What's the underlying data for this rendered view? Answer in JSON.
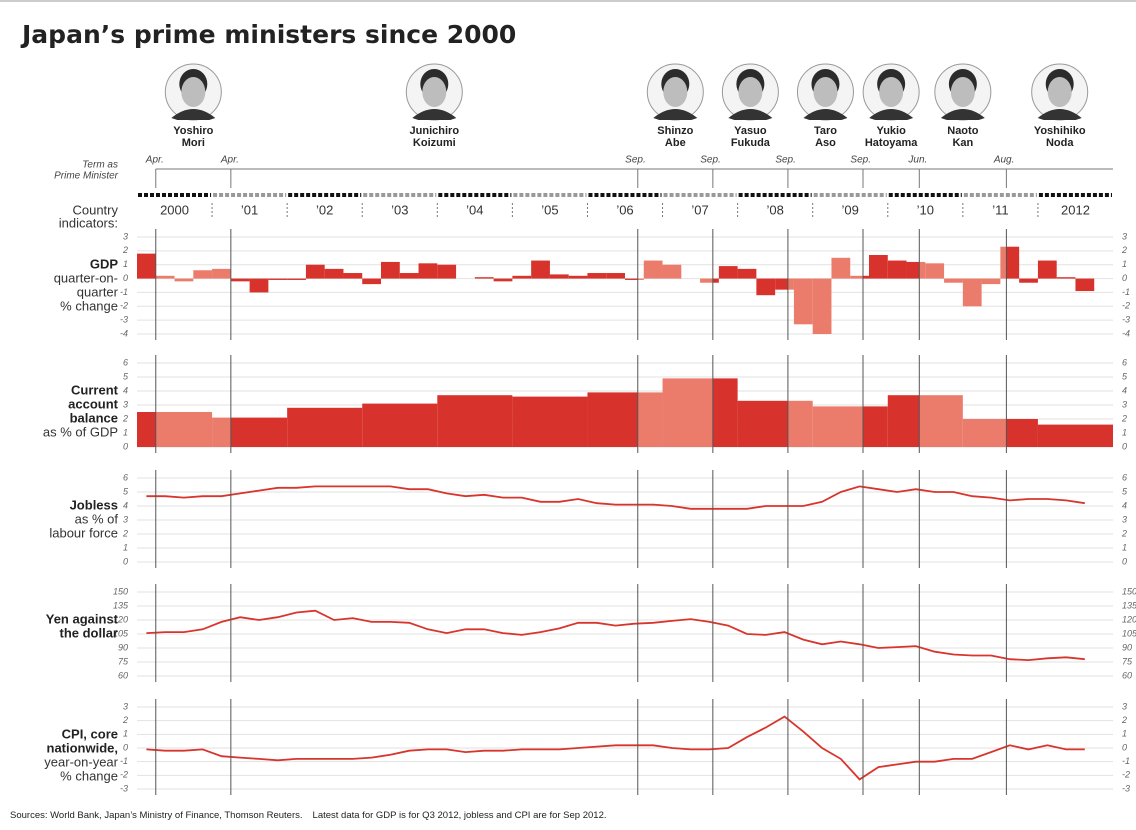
{
  "title": "Japan’s prime ministers since 2000",
  "term_heading": [
    "Term as",
    "Prime Minister"
  ],
  "indicators_heading": [
    "Country",
    "indicators:"
  ],
  "prime_ministers": [
    {
      "first": "Yoshiro",
      "last": "Mori",
      "term_label": "Apr.",
      "term_start": 2000.25
    },
    {
      "first": "Junichiro",
      "last": "Koizumi",
      "term_label": "Apr.",
      "term_start": 2001.25
    },
    {
      "first": "Shinzo",
      "last": "Abe",
      "term_label": "Sep.",
      "term_start": 2006.67
    },
    {
      "first": "Yasuo",
      "last": "Fukuda",
      "term_label": "Sep.",
      "term_start": 2007.67
    },
    {
      "first": "Taro",
      "last": "Aso",
      "term_label": "Sep.",
      "term_start": 2008.67
    },
    {
      "first": "Yukio",
      "last": "Hatoyama",
      "term_label": "Sep.",
      "term_start": 2009.67
    },
    {
      "first": "Naoto",
      "last": "Kan",
      "term_label": "Jun.",
      "term_start": 2010.42
    },
    {
      "first": "Yoshihiko",
      "last": "Noda",
      "term_label": "Aug.",
      "term_start": 2011.58
    }
  ],
  "timeline": {
    "xlim": [
      2000,
      2013
    ],
    "xticks": [
      2000,
      {
        "value": 2001,
        "label": "’01"
      },
      {
        "value": 2002,
        "label": "’02"
      },
      {
        "value": 2003,
        "label": "’03"
      },
      {
        "value": 2004,
        "label": "’04"
      },
      {
        "value": 2005,
        "label": "’05"
      },
      {
        "value": 2006,
        "label": "’06"
      },
      {
        "value": 2007,
        "label": "’07"
      },
      {
        "value": 2008,
        "label": "’08"
      },
      {
        "value": 2009,
        "label": "’09"
      },
      {
        "value": 2010,
        "label": "’10"
      },
      {
        "value": 2011,
        "label": "’11"
      },
      2012
    ]
  },
  "term_colors": [
    "#d7322b",
    "#eb7c6c"
  ],
  "chart_data": [
    {
      "type": "bar",
      "title": [
        "GDP"
      ],
      "subtitle": [
        "quarter-on-",
        "quarter",
        "% change"
      ],
      "x": [
        2000,
        2000.25,
        2000.5,
        2000.75,
        2001,
        2001.25,
        2001.5,
        2001.75,
        2002,
        2002.25,
        2002.5,
        2002.75,
        2003,
        2003.25,
        2003.5,
        2003.75,
        2004,
        2004.25,
        2004.5,
        2004.75,
        2005,
        2005.25,
        2005.5,
        2005.75,
        2006,
        2006.25,
        2006.5,
        2006.75,
        2007,
        2007.25,
        2007.5,
        2007.75,
        2008,
        2008.25,
        2008.5,
        2008.75,
        2009,
        2009.25,
        2009.5,
        2009.75,
        2010,
        2010.25,
        2010.5,
        2010.75,
        2011,
        2011.25,
        2011.5,
        2011.75,
        2012,
        2012.25,
        2012.5
      ],
      "values": [
        1.8,
        0.2,
        -0.2,
        0.6,
        0.7,
        -0.2,
        -1.0,
        -0.1,
        -0.1,
        1.0,
        0.7,
        0.4,
        -0.4,
        1.2,
        0.4,
        1.1,
        1.0,
        0.0,
        0.1,
        -0.2,
        0.2,
        1.3,
        0.3,
        0.2,
        0.4,
        0.4,
        -0.1,
        1.3,
        1.0,
        0.0,
        -0.3,
        0.9,
        0.7,
        -1.2,
        -0.8,
        -3.3,
        -4.0,
        1.5,
        0.2,
        1.7,
        1.3,
        1.2,
        1.1,
        -0.3,
        -2.0,
        -0.4,
        2.3,
        -0.3,
        1.3,
        0.1,
        -0.9
      ],
      "ylim": [
        -4,
        3
      ],
      "yticks": [
        -4,
        -3,
        -2,
        -1,
        0,
        1,
        2,
        3
      ]
    },
    {
      "type": "bar",
      "title": [
        "Current",
        "account",
        "balance"
      ],
      "subtitle": [
        "as % of GDP"
      ],
      "x": [
        2000,
        2001,
        2002,
        2003,
        2004,
        2005,
        2006,
        2007,
        2008,
        2009,
        2010,
        2011,
        2012
      ],
      "values": [
        2.5,
        2.1,
        2.8,
        3.1,
        3.7,
        3.6,
        3.9,
        4.9,
        3.3,
        2.9,
        3.7,
        2.0,
        1.6
      ],
      "ylim": [
        0,
        6
      ],
      "yticks": [
        0,
        1,
        2,
        3,
        4,
        5,
        6
      ]
    },
    {
      "type": "line",
      "title": [
        "Jobless"
      ],
      "subtitle": [
        "as % of",
        "labour force"
      ],
      "color": "#d8352d",
      "x": [
        2000.125,
        2000.375,
        2000.625,
        2000.875,
        2001.125,
        2001.375,
        2001.625,
        2001.875,
        2002.125,
        2002.375,
        2002.625,
        2002.875,
        2003.125,
        2003.375,
        2003.625,
        2003.875,
        2004.125,
        2004.375,
        2004.625,
        2004.875,
        2005.125,
        2005.375,
        2005.625,
        2005.875,
        2006.125,
        2006.375,
        2006.625,
        2006.875,
        2007.125,
        2007.375,
        2007.625,
        2007.875,
        2008.125,
        2008.375,
        2008.625,
        2008.875,
        2009.125,
        2009.375,
        2009.625,
        2009.875,
        2010.125,
        2010.375,
        2010.625,
        2010.875,
        2011.125,
        2011.375,
        2011.625,
        2011.875,
        2012.125,
        2012.375,
        2012.625
      ],
      "values": [
        4.7,
        4.7,
        4.6,
        4.7,
        4.7,
        4.9,
        5.1,
        5.3,
        5.3,
        5.4,
        5.4,
        5.4,
        5.4,
        5.4,
        5.2,
        5.2,
        4.9,
        4.7,
        4.8,
        4.6,
        4.6,
        4.3,
        4.3,
        4.5,
        4.2,
        4.1,
        4.1,
        4.1,
        4.0,
        3.8,
        3.8,
        3.8,
        3.8,
        4.0,
        4.0,
        4.0,
        4.3,
        5.0,
        5.4,
        5.2,
        5.0,
        5.2,
        5.0,
        5.0,
        4.7,
        4.6,
        4.4,
        4.5,
        4.5,
        4.4,
        4.2
      ],
      "ylim": [
        0,
        6
      ],
      "yticks": [
        0,
        1,
        2,
        3,
        4,
        5,
        6
      ]
    },
    {
      "type": "line",
      "title": [
        "Yen against",
        "the dollar"
      ],
      "subtitle": [],
      "color": "#d8352d",
      "x": [
        2000.125,
        2000.375,
        2000.625,
        2000.875,
        2001.125,
        2001.375,
        2001.625,
        2001.875,
        2002.125,
        2002.375,
        2002.625,
        2002.875,
        2003.125,
        2003.375,
        2003.625,
        2003.875,
        2004.125,
        2004.375,
        2004.625,
        2004.875,
        2005.125,
        2005.375,
        2005.625,
        2005.875,
        2006.125,
        2006.375,
        2006.625,
        2006.875,
        2007.125,
        2007.375,
        2007.625,
        2007.875,
        2008.125,
        2008.375,
        2008.625,
        2008.875,
        2009.125,
        2009.375,
        2009.625,
        2009.875,
        2010.125,
        2010.375,
        2010.625,
        2010.875,
        2011.125,
        2011.375,
        2011.625,
        2011.875,
        2012.125,
        2012.375,
        2012.625
      ],
      "values": [
        106,
        107,
        107,
        110,
        118,
        123,
        120,
        123,
        128,
        130,
        120,
        122,
        118,
        118,
        117,
        110,
        106,
        110,
        110,
        106,
        104,
        107,
        111,
        117,
        117,
        114,
        116,
        117,
        119,
        121,
        118,
        114,
        105,
        104,
        107,
        99,
        94,
        97,
        94,
        90,
        91,
        92,
        86,
        83,
        82,
        82,
        78,
        77,
        79,
        80,
        78
      ],
      "ylim": [
        60,
        150
      ],
      "yticks": [
        60,
        75,
        90,
        105,
        120,
        135,
        150
      ]
    },
    {
      "type": "line",
      "title": [
        "CPI, core",
        "nationwide,"
      ],
      "subtitle": [
        "year-on-year",
        "% change"
      ],
      "color": "#d8352d",
      "x": [
        2000.125,
        2000.375,
        2000.625,
        2000.875,
        2001.125,
        2001.375,
        2001.625,
        2001.875,
        2002.125,
        2002.375,
        2002.625,
        2002.875,
        2003.125,
        2003.375,
        2003.625,
        2003.875,
        2004.125,
        2004.375,
        2004.625,
        2004.875,
        2005.125,
        2005.375,
        2005.625,
        2005.875,
        2006.125,
        2006.375,
        2006.625,
        2006.875,
        2007.125,
        2007.375,
        2007.625,
        2007.875,
        2008.125,
        2008.375,
        2008.625,
        2008.875,
        2009.125,
        2009.375,
        2009.625,
        2009.875,
        2010.125,
        2010.375,
        2010.625,
        2010.875,
        2011.125,
        2011.375,
        2011.625,
        2011.875,
        2012.125,
        2012.375,
        2012.625
      ],
      "values": [
        -0.1,
        -0.2,
        -0.2,
        -0.1,
        -0.6,
        -0.7,
        -0.8,
        -0.9,
        -0.8,
        -0.8,
        -0.8,
        -0.8,
        -0.7,
        -0.5,
        -0.2,
        -0.1,
        -0.1,
        -0.3,
        -0.2,
        -0.2,
        -0.1,
        -0.1,
        -0.1,
        0.0,
        0.1,
        0.2,
        0.2,
        0.2,
        0.0,
        -0.1,
        -0.1,
        0.0,
        0.8,
        1.5,
        2.3,
        1.2,
        0.0,
        -0.8,
        -2.3,
        -1.4,
        -1.2,
        -1.0,
        -1.0,
        -0.8,
        -0.8,
        -0.3,
        0.2,
        -0.1,
        0.2,
        -0.1,
        -0.1
      ],
      "ylim": [
        -3,
        3
      ],
      "yticks": [
        -3,
        -2,
        -1,
        0,
        1,
        2,
        3
      ]
    }
  ],
  "source": "Sources: World Bank, Japan’s Ministry of Finance, Thomson Reuters.",
  "note": "Latest data for GDP is for Q3 2012, jobless and CPI are for Sep 2012."
}
